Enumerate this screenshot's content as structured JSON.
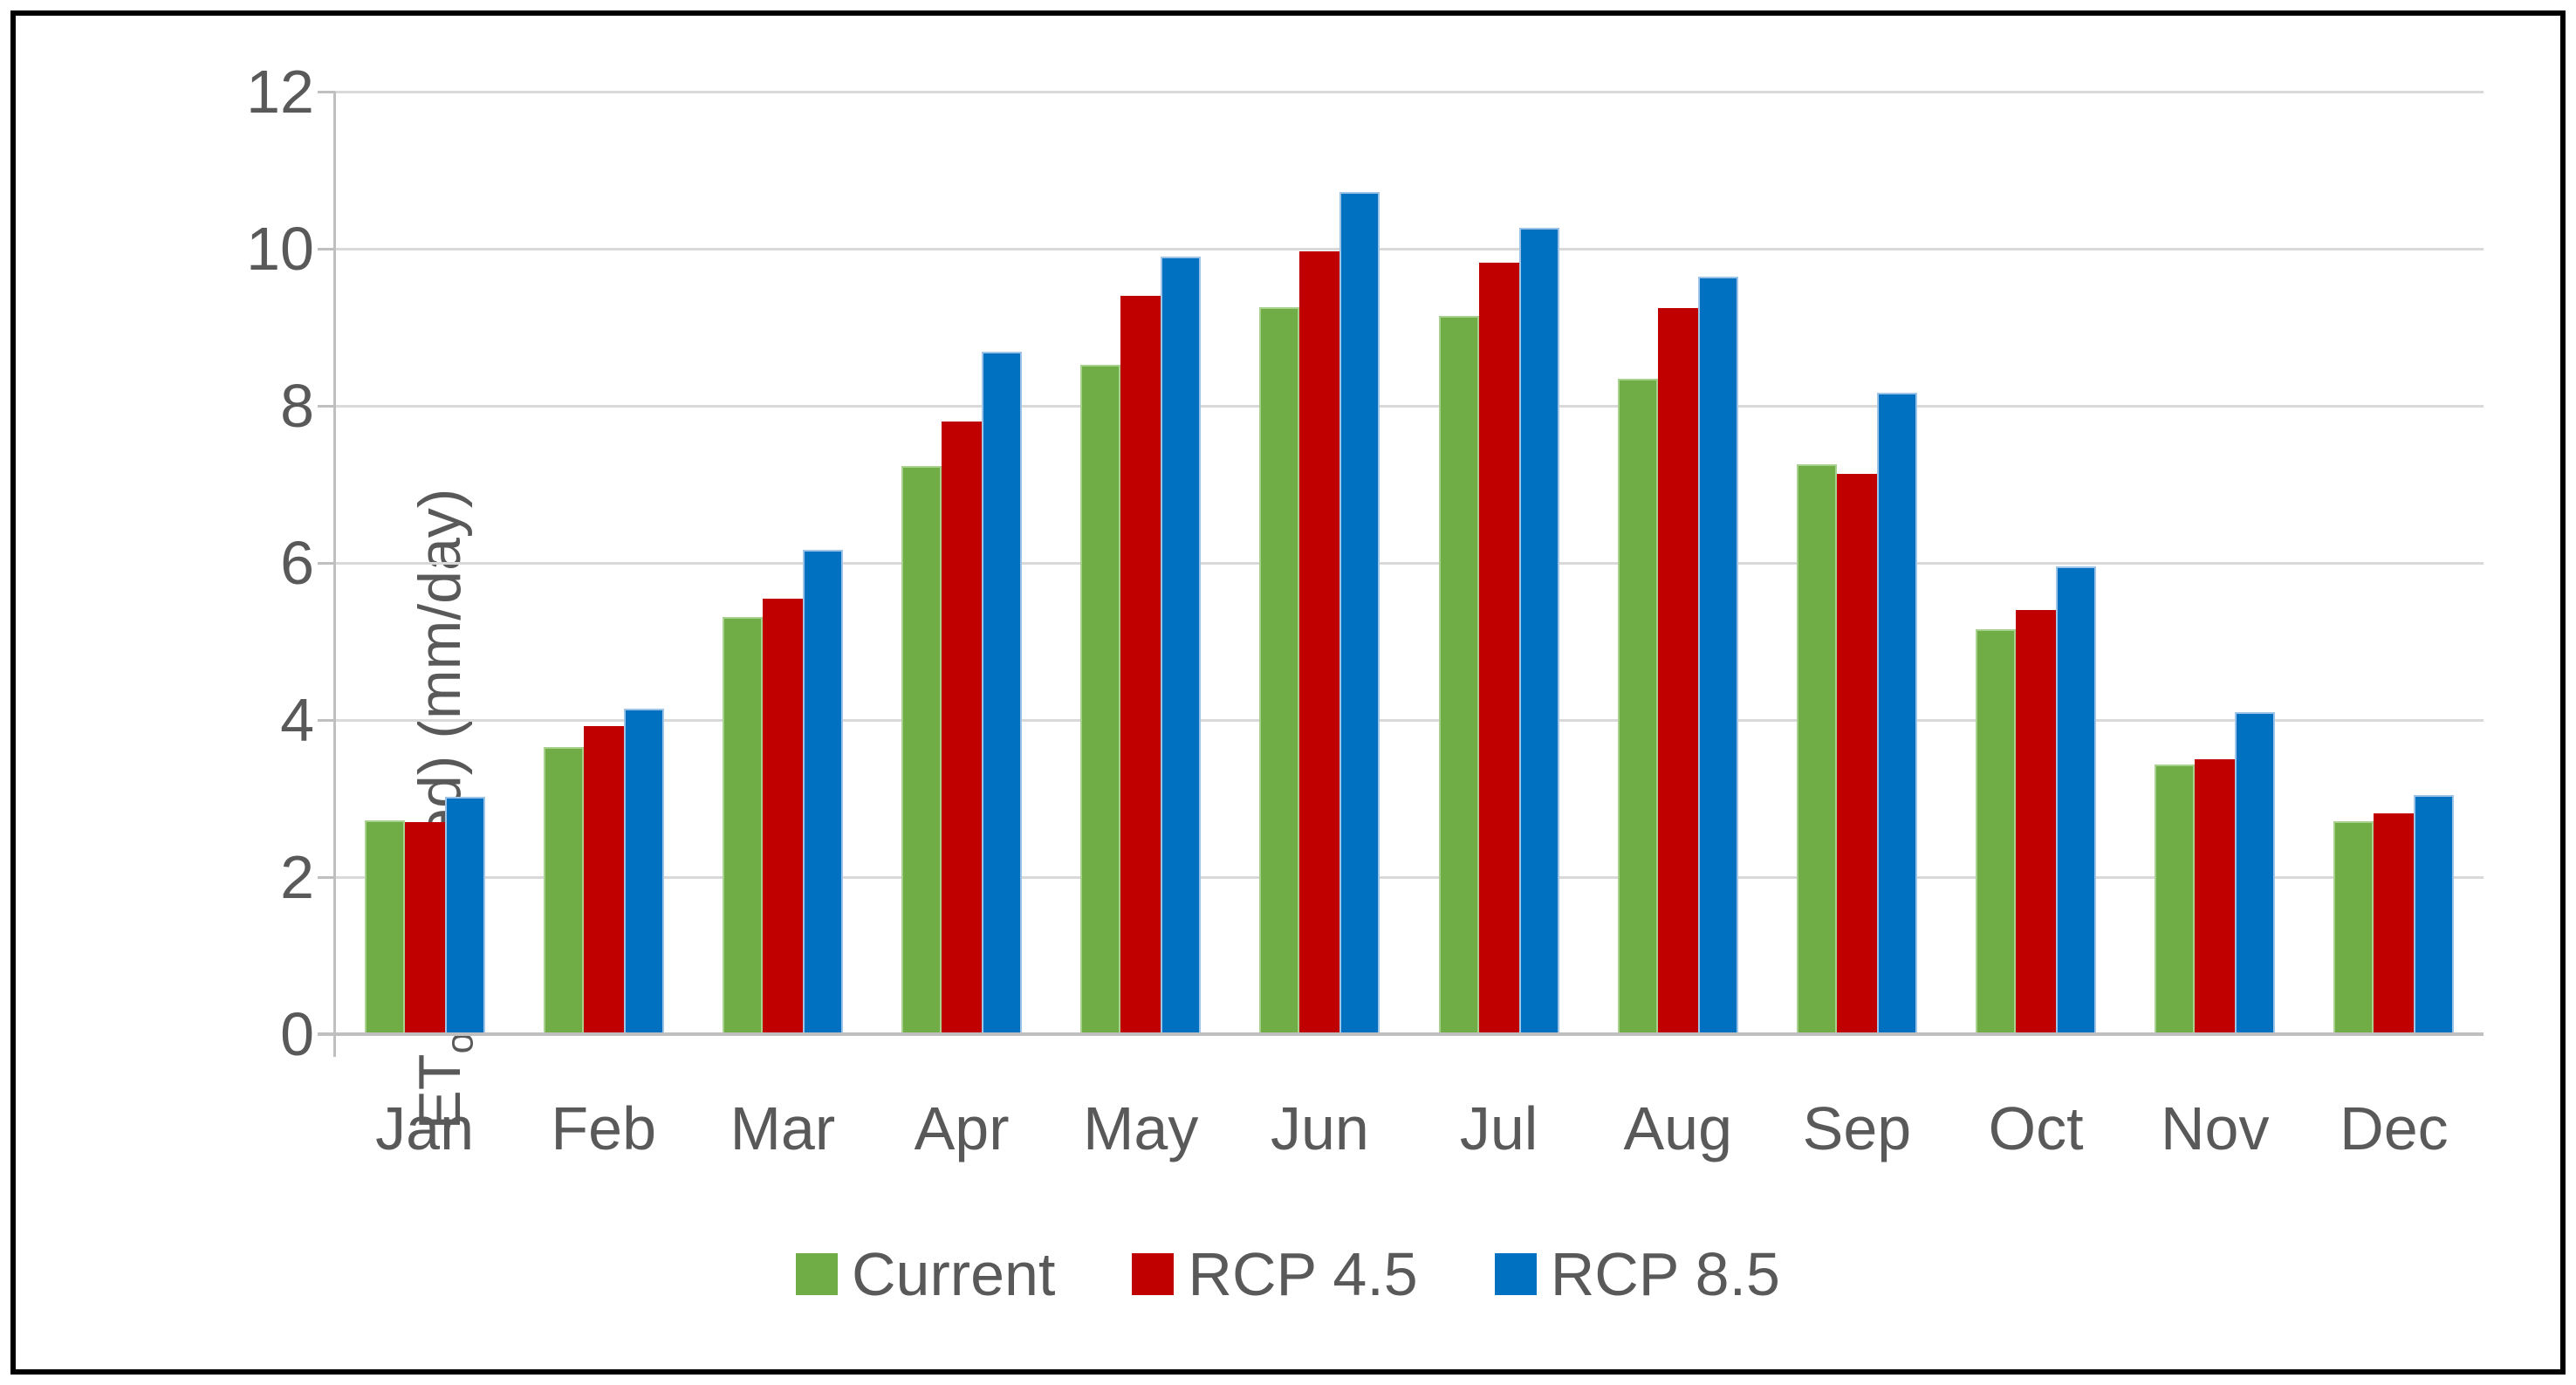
{
  "chart_data": {
    "type": "bar",
    "title": "",
    "categories": [
      "Jan",
      "Feb",
      "Mar",
      "Apr",
      "May",
      "Jun",
      "Jul",
      "Aug",
      "Sep",
      "Oct",
      "Nov",
      "Dec"
    ],
    "series": [
      {
        "name": "Current",
        "color": "#70AD47",
        "border_color": "#A9D18E",
        "values": [
          2.72,
          3.65,
          5.31,
          7.23,
          8.52,
          9.26,
          9.14,
          8.34,
          7.26,
          5.15,
          3.43,
          2.71
        ]
      },
      {
        "name": "RCP 4.5",
        "color": "#C00000",
        "border_color": "#C00000",
        "values": [
          2.7,
          3.92,
          5.54,
          7.8,
          9.4,
          9.97,
          9.82,
          9.24,
          7.13,
          5.4,
          3.5,
          2.81
        ]
      },
      {
        "name": "RCP 8.5",
        "color": "#0070C0",
        "border_color": "#9DC3E6",
        "values": [
          3.02,
          4.14,
          6.17,
          8.69,
          9.9,
          10.72,
          10.27,
          9.64,
          8.17,
          5.95,
          4.1,
          3.04
        ]
      }
    ],
    "xlabel": "",
    "ylabel": "ETo(weighted) (mm/day)",
    "ylim": [
      0,
      12
    ],
    "ytick_step": 2,
    "ytick_labels": [
      "0",
      "2",
      "4",
      "6",
      "8",
      "10",
      "12"
    ],
    "grid": true,
    "legend_position": "bottom"
  },
  "y_axis": {
    "title_main": "ET",
    "title_sub": "o",
    "title_rest": "(weighted) (mm/day)"
  },
  "style": {
    "text_color": "#595959",
    "gridline_color": "#D9D9D9",
    "axis_color": "#BFBFBF",
    "outer_border_color": "#000000"
  }
}
